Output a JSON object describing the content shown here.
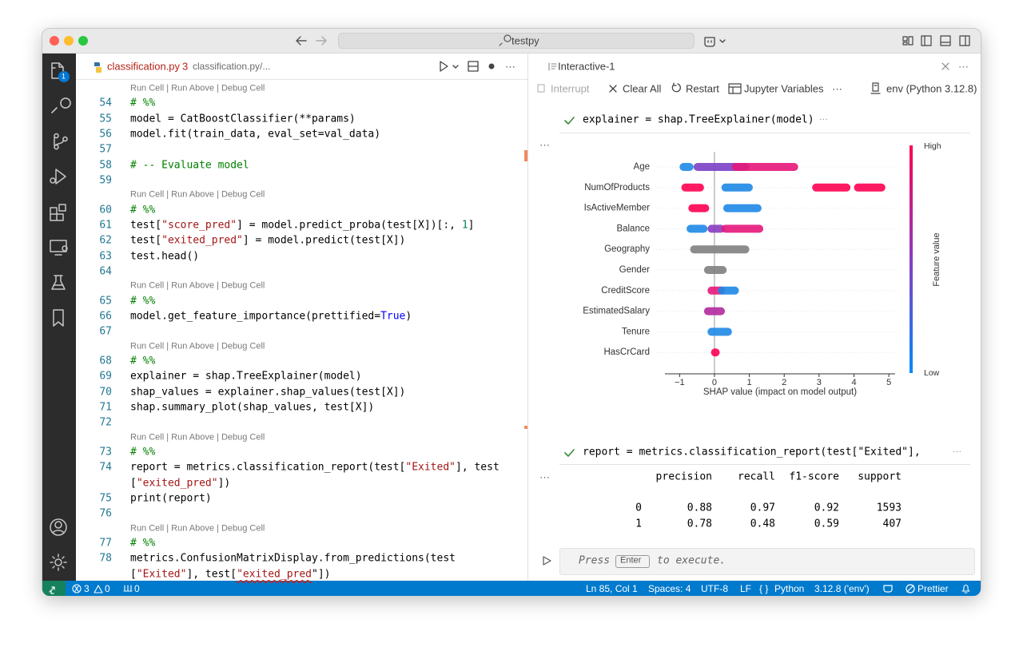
{
  "titlebar": {
    "search": "testpy"
  },
  "activity": {
    "badge": "1"
  },
  "editor": {
    "tab": {
      "file": "classification.py",
      "problems": 3,
      "path": "classification.py/..."
    },
    "rows": [
      {
        "lens": "Run Cell | Run Above | Debug Cell"
      },
      {
        "num": 54,
        "code": [
          [
            "# %%",
            "c"
          ]
        ]
      },
      {
        "num": 55,
        "code": [
          [
            "model = CatBoostClassifier(**params)",
            "t"
          ]
        ]
      },
      {
        "num": 56,
        "code": [
          [
            "model.fit(train_data, eval_set=val_data)",
            "t"
          ]
        ]
      },
      {
        "num": 57,
        "code": []
      },
      {
        "num": 58,
        "code": [
          [
            "# -- Evaluate model",
            "c"
          ]
        ]
      },
      {
        "num": 59,
        "code": []
      },
      {
        "lens": "Run Cell | Run Above | Debug Cell"
      },
      {
        "num": 60,
        "code": [
          [
            "# %%",
            "c"
          ]
        ]
      },
      {
        "num": 61,
        "code": [
          [
            "test[",
            "t"
          ],
          [
            "\"score_pred\"",
            "s"
          ],
          [
            "] = model.predict_proba(test[X])[:, ",
            "t"
          ],
          [
            "1",
            "n"
          ],
          [
            "]",
            "t"
          ]
        ]
      },
      {
        "num": 62,
        "code": [
          [
            "test[",
            "t"
          ],
          [
            "\"exited_pred\"",
            "s"
          ],
          [
            "] = model.predict(test[X])",
            "t"
          ]
        ]
      },
      {
        "num": 63,
        "code": [
          [
            "test.head()",
            "t"
          ]
        ]
      },
      {
        "num": 64,
        "code": []
      },
      {
        "lens": "Run Cell | Run Above | Debug Cell"
      },
      {
        "num": 65,
        "code": [
          [
            "# %%",
            "c"
          ]
        ]
      },
      {
        "num": 66,
        "code": [
          [
            "model.get_feature_importance(prettified=",
            "t"
          ],
          [
            "True",
            "k"
          ],
          [
            ")",
            "t"
          ]
        ]
      },
      {
        "num": 67,
        "code": []
      },
      {
        "lens": "Run Cell | Run Above | Debug Cell"
      },
      {
        "num": 68,
        "code": [
          [
            "# %%",
            "c"
          ]
        ]
      },
      {
        "num": 69,
        "code": [
          [
            "explainer = shap.TreeExplainer(model)",
            "t"
          ]
        ]
      },
      {
        "num": 70,
        "code": [
          [
            "shap_values = explainer.shap_values(test[X])",
            "t"
          ]
        ]
      },
      {
        "num": 71,
        "code": [
          [
            "shap.summary_plot(shap_values, test[X])",
            "t"
          ]
        ]
      },
      {
        "num": 72,
        "code": []
      },
      {
        "lens": "Run Cell | Run Above | Debug Cell"
      },
      {
        "num": 73,
        "code": [
          [
            "# %%",
            "c"
          ]
        ]
      },
      {
        "num": 74,
        "code": [
          [
            "report = metrics.classification_report(test[",
            "t"
          ],
          [
            "\"Exited\"",
            "s"
          ],
          [
            "], test",
            "t"
          ]
        ]
      },
      {
        "code": [
          [
            "[",
            "t"
          ],
          [
            "\"exited_pred\"",
            "s"
          ],
          [
            "])",
            "t"
          ]
        ]
      },
      {
        "num": 75,
        "code": [
          [
            "print(report)",
            "t"
          ]
        ]
      },
      {
        "num": 76,
        "code": []
      },
      {
        "lens": "Run Cell | Run Above | Debug Cell"
      },
      {
        "num": 77,
        "code": [
          [
            "# %%",
            "c"
          ]
        ]
      },
      {
        "num": 78,
        "code": [
          [
            "metrics.ConfusionMatrixDisplay.from_predictions(test",
            "t"
          ]
        ]
      },
      {
        "code": [
          [
            "[",
            "t"
          ],
          [
            "\"Exited\"",
            "s"
          ],
          [
            "], test[",
            "t"
          ],
          [
            "\"exited_pred",
            "u"
          ],
          [
            "\"])",
            "t"
          ]
        ]
      }
    ]
  },
  "interactive": {
    "tab": "Interactive-1",
    "more": "···",
    "toolbar": {
      "interrupt": "Interrupt",
      "clear": "Clear All",
      "restart": "Restart",
      "variables": "Jupyter Variables",
      "kernel": "env (Python 3.12.8)"
    },
    "cells": [
      {
        "code": "explainer = shap.TreeExplainer(model)"
      },
      {
        "code": "report = metrics.classification_report(test[\"Exited\"],"
      }
    ],
    "plot": {
      "type": "beeswarm",
      "categories": [
        "Age",
        "NumOfProducts",
        "IsActiveMember",
        "Balance",
        "Geography",
        "Gender",
        "CreditScore",
        "EstimatedSalary",
        "Tenure",
        "HasCrCard"
      ],
      "clusters": [
        [
          {
            "x": [
              -1.0,
              -0.6
            ],
            "color": "#1e88e5"
          },
          {
            "x": [
              -0.6,
              1.0
            ],
            "color": "#7b3fc4"
          },
          {
            "x": [
              0.5,
              2.4
            ],
            "color": "#e5177a"
          }
        ],
        [
          {
            "x": [
              -0.95,
              -0.3
            ],
            "color": "#ff0052"
          },
          {
            "x": [
              0.2,
              1.1
            ],
            "color": "#1e88e5"
          },
          {
            "x": [
              2.8,
              3.9
            ],
            "color": "#ff0052"
          },
          {
            "x": [
              4.0,
              4.9
            ],
            "color": "#ff0052"
          }
        ],
        [
          {
            "x": [
              -0.75,
              -0.15
            ],
            "color": "#ff0052"
          },
          {
            "x": [
              0.25,
              1.35
            ],
            "color": "#1e88e5"
          }
        ],
        [
          {
            "x": [
              -0.8,
              -0.2
            ],
            "color": "#1e88e5"
          },
          {
            "x": [
              -0.2,
              0.3
            ],
            "color": "#8a3cc0"
          },
          {
            "x": [
              0.2,
              1.4
            ],
            "color": "#e5177a"
          }
        ],
        [
          {
            "x": [
              -0.7,
              1.0
            ],
            "color": "#808080"
          }
        ],
        [
          {
            "x": [
              -0.3,
              0.35
            ],
            "color": "#808080"
          }
        ],
        [
          {
            "x": [
              -0.2,
              0.3
            ],
            "color": "#e5177a"
          },
          {
            "x": [
              0.1,
              0.7
            ],
            "color": "#1e88e5"
          }
        ],
        [
          {
            "x": [
              -0.3,
              0.3
            ],
            "color": "#b02a9c"
          }
        ],
        [
          {
            "x": [
              -0.2,
              0.5
            ],
            "color": "#1e88e5"
          }
        ],
        [
          {
            "x": [
              -0.1,
              0.15
            ],
            "color": "#ff0052"
          }
        ]
      ],
      "xlabel": "SHAP value (impact on model output)",
      "xlim": [
        -1.42,
        5.18
      ],
      "xticks": [
        {
          "value": -1,
          "label": "−1"
        },
        0,
        1,
        2,
        3,
        4,
        5
      ],
      "colorbar": {
        "high": "High",
        "low": "Low",
        "label": "Feature value",
        "colors": [
          "#ff0052",
          "#8a3cc0",
          "#008bfb"
        ]
      }
    },
    "report": {
      "header": [
        "precision",
        "recall",
        "f1-score",
        "support"
      ],
      "rows": [
        [
          0,
          0.88,
          0.97,
          0.92,
          1593
        ],
        [
          1,
          0.78,
          0.48,
          0.59,
          407
        ]
      ]
    },
    "input": {
      "before": "Press",
      "key": "Enter",
      "after": "to execute."
    }
  },
  "statusbar": {
    "errors": 3,
    "warnings": 0,
    "ports": 0,
    "position": "Ln 85, Col 1",
    "spaces": "Spaces: 4",
    "encoding": "UTF-8",
    "eol": "LF",
    "braces": "{ }",
    "language": "Python",
    "interpreter": "3.12.8 ('env')",
    "prettier": "Prettier"
  }
}
